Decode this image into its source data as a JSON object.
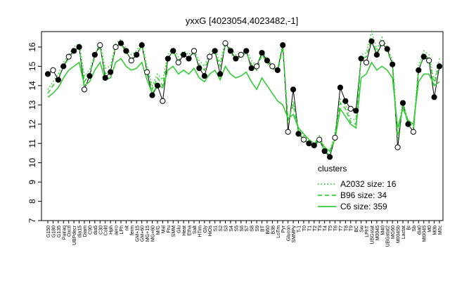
{
  "chart_data": {
    "type": "line",
    "title": "yxxG [4023054,4023482,-1]",
    "xlabel": "",
    "ylabel": "",
    "ylim": [
      7,
      16.8
    ],
    "yticks": [
      7,
      8,
      9,
      10,
      11,
      12,
      13,
      14,
      15,
      16
    ],
    "x_tick_labels": [
      "G150",
      "G180",
      "G135",
      "Pairaq",
      "Oxctl",
      "UBPdecr",
      "dia15",
      "Diam",
      "C90",
      "dia5",
      "C30",
      "Cold",
      "Hph",
      "aero",
      "LPh",
      "nit",
      "ferm",
      "GM+15",
      "GM+60",
      "MG+15",
      "MG+60",
      "M/G",
      "Mal",
      "Fru",
      "SMM",
      "Glu",
      "Heat",
      "Etha",
      "Salt",
      "HTim",
      "Gly",
      "HiOs",
      "S1",
      "S2",
      "S3",
      "S4",
      "S5",
      "S6",
      "S7",
      "S8",
      "S9",
      "BT",
      "B60",
      "B36",
      "LoTm",
      "Pyr",
      "Glucon",
      "SMMPy",
      "T-1",
      "T0",
      "T1",
      "T2",
      "T3",
      "T4",
      "T5",
      "T6",
      "T7",
      "T8",
      "T9",
      "BC",
      "Sw",
      "LPhT",
      "UBGstat",
      "M0045",
      "M40",
      "UBGstat2",
      "MG60",
      "M0045b",
      "Lactat",
      "BI",
      "Sb",
      "dia0",
      "Mt0045",
      "M0",
      "M0b",
      "M0c"
    ],
    "legend": {
      "title": "clusters",
      "placement": "right",
      "entries": [
        {
          "label": "A2032 size: 16",
          "style": "dotted",
          "color": "#33cc33"
        },
        {
          "label": "B96 size: 34",
          "style": "dashed",
          "color": "#33cc33"
        },
        {
          "label": "C6 size: 359",
          "style": "solid",
          "color": "#33cc33"
        }
      ]
    },
    "series": [
      {
        "label": "gene",
        "style": "points",
        "color": "#000000",
        "values": [
          14.6,
          14.8,
          14.3,
          15.0,
          15.5,
          15.8,
          16.0,
          13.8,
          14.5,
          15.6,
          16.1,
          14.4,
          14.7,
          16.0,
          16.2,
          15.8,
          15.3,
          15.6,
          16.1,
          14.7,
          13.5,
          14.0,
          13.2,
          15.4,
          15.8,
          15.2,
          15.6,
          15.4,
          15.8,
          14.9,
          14.5,
          15.5,
          15.8,
          14.6,
          16.2,
          15.8,
          15.4,
          15.6,
          15.8,
          14.9,
          15.0,
          15.7,
          15.3,
          15.0,
          14.8,
          16.1,
          11.6,
          13.8,
          11.5,
          11.2,
          11.0,
          10.9,
          11.2,
          10.6,
          10.3,
          11.3,
          13.9,
          13.2,
          12.8,
          12.7,
          15.4,
          15.2,
          16.3,
          15.6,
          16.2,
          15.9,
          15.1,
          10.8,
          13.1,
          12.0,
          11.6,
          14.8,
          15.5,
          15.3,
          13.4,
          15.0
        ]
      },
      {
        "label": "A2032 size: 16",
        "style": "dotted",
        "color": "#33cc33",
        "values": [
          13.8,
          14.2,
          14.6,
          15.2,
          15.6,
          16.0,
          16.2,
          14.5,
          14.8,
          15.6,
          16.2,
          14.9,
          15.0,
          16.2,
          16.4,
          15.9,
          15.6,
          15.8,
          16.3,
          15.0,
          14.0,
          14.6,
          14.3,
          15.6,
          16.0,
          15.5,
          15.8,
          15.6,
          15.9,
          15.3,
          15.0,
          15.7,
          15.9,
          15.2,
          16.3,
          15.9,
          15.6,
          15.7,
          15.9,
          15.3,
          15.0,
          15.8,
          15.4,
          15.1,
          14.9,
          16.2,
          12.0,
          13.2,
          11.8,
          11.4,
          11.2,
          11.0,
          11.4,
          10.8,
          10.6,
          11.6,
          13.3,
          13.0,
          12.3,
          12.2,
          15.6,
          15.7,
          16.8,
          15.9,
          16.5,
          16.0,
          15.3,
          11.4,
          13.2,
          12.2,
          11.8,
          15.0,
          15.8,
          15.6,
          14.2,
          15.4
        ]
      },
      {
        "label": "B96 size: 34",
        "style": "dashed",
        "color": "#33cc33",
        "values": [
          13.6,
          14.0,
          14.4,
          15.0,
          15.4,
          15.8,
          16.0,
          14.2,
          14.6,
          15.5,
          16.0,
          14.6,
          14.8,
          16.0,
          16.2,
          15.7,
          15.4,
          15.6,
          16.1,
          14.8,
          13.8,
          14.4,
          14.0,
          15.4,
          15.8,
          15.3,
          15.6,
          15.4,
          15.7,
          15.1,
          14.8,
          15.5,
          15.7,
          15.0,
          16.1,
          15.7,
          15.4,
          15.5,
          15.7,
          15.1,
          14.8,
          15.6,
          15.2,
          14.9,
          14.7,
          16.0,
          12.2,
          13.0,
          11.6,
          11.2,
          11.0,
          10.8,
          11.2,
          10.6,
          10.4,
          11.4,
          13.1,
          12.8,
          12.1,
          12.0,
          15.4,
          15.5,
          16.4,
          15.7,
          16.3,
          15.8,
          15.1,
          11.2,
          13.0,
          12.0,
          11.6,
          14.8,
          15.6,
          15.4,
          14.0,
          15.2
        ]
      },
      {
        "label": "C6 size: 359",
        "style": "solid",
        "color": "#33cc33",
        "values": [
          13.4,
          13.6,
          13.9,
          14.4,
          14.8,
          15.0,
          15.2,
          14.0,
          14.2,
          14.8,
          15.2,
          14.3,
          14.4,
          15.2,
          15.4,
          15.0,
          14.8,
          14.9,
          15.2,
          14.3,
          13.6,
          14.0,
          13.9,
          14.8,
          15.0,
          14.6,
          14.8,
          14.6,
          14.9,
          14.4,
          14.2,
          14.6,
          14.8,
          14.3,
          15.0,
          14.6,
          14.4,
          14.5,
          14.7,
          14.2,
          13.8,
          14.4,
          14.0,
          13.6,
          13.2,
          13.0,
          12.3,
          12.5,
          11.8,
          11.5,
          11.2,
          11.0,
          11.2,
          10.8,
          10.6,
          11.2,
          12.8,
          12.4,
          12.0,
          11.8,
          14.4,
          14.6,
          15.2,
          14.8,
          15.0,
          14.8,
          14.4,
          11.8,
          12.8,
          12.2,
          12.0,
          14.2,
          14.6,
          14.6,
          14.0,
          14.2
        ]
      }
    ]
  }
}
